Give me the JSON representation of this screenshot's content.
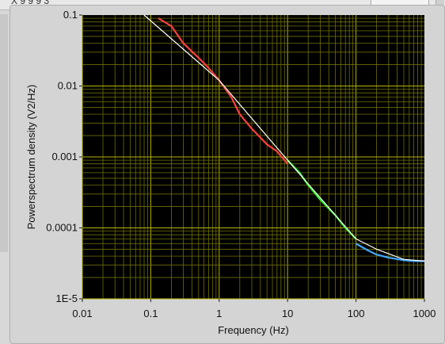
{
  "window": {
    "title_fragment": "X 9 9 9 3"
  },
  "chart_data": {
    "type": "line",
    "xlabel": "Frequency (Hz)",
    "ylabel": "Powerspectrum density (V2/Hz)",
    "xscale": "log",
    "yscale": "log",
    "xlim": [
      0.01,
      1000
    ],
    "ylim": [
      1e-05,
      0.1
    ],
    "grid": true,
    "x_ticks": [
      "0.01",
      "0.1",
      "1",
      "10",
      "100",
      "1000"
    ],
    "y_ticks": [
      "1E-5",
      "0.0001",
      "0.001",
      "0.01",
      "0.1"
    ],
    "colors": {
      "plot_background": "#000000",
      "grid_major": "#b4b400",
      "grid_minor": "#6e6e00",
      "fit_line": "#ffffff",
      "series_low": "#ff4040",
      "series_mid": "#22ee22",
      "series_high": "#40a8ff"
    },
    "series": [
      {
        "color": "#ff4040",
        "x": [
          0.13,
          0.2,
          0.3,
          0.5,
          0.7,
          1,
          1.5,
          2,
          3,
          5,
          7,
          10
        ],
        "y": [
          0.09,
          0.07,
          0.04,
          0.025,
          0.018,
          0.012,
          0.007,
          0.004,
          0.0025,
          0.0015,
          0.0012,
          0.0008
        ]
      },
      {
        "color": "#22ee22",
        "x": [
          10,
          15,
          20,
          30,
          50,
          70,
          100
        ],
        "y": [
          0.0009,
          0.0006,
          0.0004,
          0.00025,
          0.00015,
          0.0001,
          7e-05
        ]
      },
      {
        "color": "#40a8ff",
        "x": [
          100,
          150,
          200,
          300,
          500,
          700,
          1000
        ],
        "y": [
          6e-05,
          4.8e-05,
          4.2e-05,
          3.8e-05,
          3.5e-05,
          3.4e-05,
          3.4e-05
        ]
      },
      {
        "color": "#ffffff",
        "x": [
          0.08,
          1,
          10,
          100,
          200,
          500,
          1000
        ],
        "y": [
          0.1,
          0.012,
          0.0009,
          7e-05,
          5e-05,
          3.6e-05,
          3.4e-05
        ]
      }
    ]
  }
}
